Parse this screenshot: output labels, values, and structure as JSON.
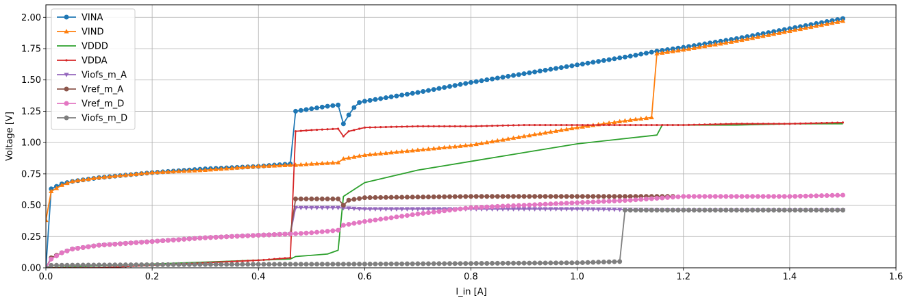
{
  "chart_data": {
    "type": "line",
    "title": "",
    "xlabel": "I_in [A]",
    "ylabel": "Voltage [V]",
    "xlim": [
      0,
      1.6
    ],
    "ylim": [
      0,
      2.1
    ],
    "xticks": [
      "0.0",
      "0.2",
      "0.4",
      "0.6",
      "0.8",
      "1.0",
      "1.2",
      "1.4",
      "1.6"
    ],
    "yticks": [
      "0.00",
      "0.25",
      "0.50",
      "0.75",
      "1.00",
      "1.25",
      "1.50",
      "1.75",
      "2.00"
    ],
    "grid": true,
    "legend_position": "top-left",
    "series": [
      {
        "name": "VINA",
        "color": "#1f77b4",
        "marker": "circle",
        "x": [
          0,
          0.01,
          0.03,
          0.05,
          0.1,
          0.2,
          0.3,
          0.4,
          0.46,
          0.47,
          0.5,
          0.53,
          0.55,
          0.56,
          0.57,
          0.58,
          0.59,
          0.6,
          0.7,
          0.8,
          0.9,
          1.0,
          1.1,
          1.15,
          1.2,
          1.3,
          1.4,
          1.5
        ],
        "y": [
          0.0,
          0.63,
          0.67,
          0.69,
          0.72,
          0.76,
          0.79,
          0.81,
          0.83,
          1.25,
          1.27,
          1.29,
          1.3,
          1.15,
          1.22,
          1.28,
          1.32,
          1.33,
          1.4,
          1.48,
          1.55,
          1.62,
          1.69,
          1.73,
          1.76,
          1.83,
          1.91,
          1.99
        ]
      },
      {
        "name": "VIND",
        "color": "#ff7f0e",
        "marker": "triangle-up",
        "x": [
          0,
          0.01,
          0.03,
          0.05,
          0.1,
          0.2,
          0.3,
          0.4,
          0.46,
          0.47,
          0.5,
          0.55,
          0.56,
          0.6,
          0.7,
          0.8,
          0.9,
          1.0,
          1.1,
          1.14,
          1.15,
          1.2,
          1.3,
          1.4,
          1.5
        ],
        "y": [
          0.38,
          0.61,
          0.66,
          0.69,
          0.72,
          0.76,
          0.78,
          0.81,
          0.82,
          0.82,
          0.83,
          0.84,
          0.87,
          0.9,
          0.94,
          0.98,
          1.05,
          1.12,
          1.18,
          1.2,
          1.71,
          1.74,
          1.81,
          1.89,
          1.97
        ]
      },
      {
        "name": "VDDD",
        "color": "#2ca02c",
        "marker": "none",
        "x": [
          0,
          0.46,
          0.47,
          0.5,
          0.53,
          0.55,
          0.56,
          0.6,
          0.7,
          0.8,
          0.9,
          1.0,
          1.15,
          1.16,
          1.2,
          1.3,
          1.4,
          1.5
        ],
        "y": [
          0.0,
          0.07,
          0.09,
          0.1,
          0.11,
          0.14,
          0.57,
          0.68,
          0.78,
          0.85,
          0.92,
          0.99,
          1.06,
          1.14,
          1.14,
          1.14,
          1.15,
          1.15
        ]
      },
      {
        "name": "VDDA",
        "color": "#d62728",
        "marker": "dot",
        "x": [
          0,
          0.1,
          0.2,
          0.3,
          0.4,
          0.46,
          0.47,
          0.5,
          0.55,
          0.56,
          0.57,
          0.59,
          0.6,
          0.7,
          0.8,
          0.9,
          1.0,
          1.1,
          1.2,
          1.3,
          1.4,
          1.5
        ],
        "y": [
          0.0,
          0.0,
          0.02,
          0.04,
          0.06,
          0.08,
          1.09,
          1.1,
          1.11,
          1.05,
          1.09,
          1.11,
          1.12,
          1.13,
          1.13,
          1.14,
          1.14,
          1.14,
          1.14,
          1.15,
          1.15,
          1.16
        ]
      },
      {
        "name": "Viofs_m_A",
        "color": "#9467bd",
        "marker": "triangle-down",
        "x": [
          0,
          0.01,
          0.03,
          0.05,
          0.1,
          0.2,
          0.3,
          0.4,
          0.46,
          0.47,
          0.55,
          0.6,
          0.8,
          1.0,
          1.2,
          1.4,
          1.5
        ],
        "y": [
          0.0,
          0.07,
          0.12,
          0.15,
          0.18,
          0.21,
          0.24,
          0.26,
          0.27,
          0.48,
          0.48,
          0.47,
          0.47,
          0.47,
          0.46,
          0.46,
          0.46
        ]
      },
      {
        "name": "Vref_m_A",
        "color": "#8c564b",
        "marker": "circle",
        "x": [
          0,
          0.01,
          0.03,
          0.05,
          0.1,
          0.2,
          0.3,
          0.4,
          0.46,
          0.47,
          0.55,
          0.56,
          0.57,
          0.6,
          0.8,
          1.0,
          1.18
        ],
        "y": [
          0.0,
          0.08,
          0.12,
          0.15,
          0.18,
          0.21,
          0.24,
          0.26,
          0.27,
          0.55,
          0.55,
          0.5,
          0.54,
          0.56,
          0.57,
          0.57,
          0.57
        ]
      },
      {
        "name": "Vref_m_D",
        "color": "#e377c2",
        "marker": "circle",
        "x": [
          0,
          0.01,
          0.03,
          0.05,
          0.1,
          0.2,
          0.3,
          0.4,
          0.46,
          0.5,
          0.55,
          0.56,
          0.6,
          0.7,
          0.8,
          0.9,
          1.0,
          1.1,
          1.2,
          1.3,
          1.4,
          1.5
        ],
        "y": [
          0.0,
          0.07,
          0.12,
          0.15,
          0.18,
          0.21,
          0.24,
          0.26,
          0.27,
          0.28,
          0.3,
          0.34,
          0.37,
          0.43,
          0.48,
          0.5,
          0.52,
          0.54,
          0.57,
          0.57,
          0.57,
          0.58
        ]
      },
      {
        "name": "Viofs_m_D",
        "color": "#7f7f7f",
        "marker": "circle",
        "x": [
          0,
          0.01,
          0.2,
          0.4,
          0.6,
          0.8,
          1.0,
          1.08,
          1.09,
          1.2,
          1.3,
          1.4,
          1.5
        ],
        "y": [
          0.0,
          0.02,
          0.025,
          0.028,
          0.03,
          0.035,
          0.04,
          0.05,
          0.46,
          0.46,
          0.46,
          0.46,
          0.46
        ]
      }
    ]
  }
}
